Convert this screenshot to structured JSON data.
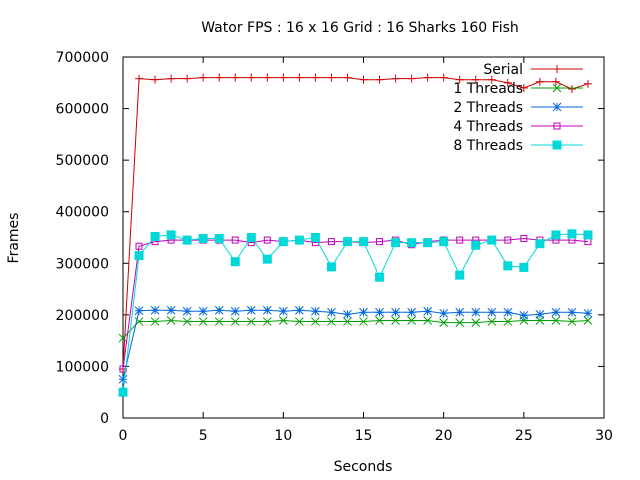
{
  "chart_data": {
    "type": "line",
    "title": "Wator FPS : 16  x 16  Grid : 16 Sharks 160 Fish",
    "xlabel": "Seconds",
    "ylabel": "Frames",
    "xlim": [
      0,
      30
    ],
    "ylim": [
      0,
      700000
    ],
    "x_ticks": [
      0,
      5,
      10,
      15,
      20,
      25,
      30
    ],
    "y_ticks": [
      0,
      100000,
      200000,
      300000,
      400000,
      500000,
      600000,
      700000
    ],
    "grid": false,
    "legend_position": "top-right",
    "x": [
      0,
      1,
      2,
      3,
      4,
      5,
      6,
      7,
      8,
      9,
      10,
      11,
      12,
      13,
      14,
      15,
      16,
      17,
      18,
      19,
      20,
      21,
      22,
      23,
      24,
      25,
      26,
      27,
      28,
      29
    ],
    "series": [
      {
        "name": "Serial",
        "color": "#cc0000",
        "marker": "plus",
        "start": [
          0,
          95000
        ],
        "values": [
          95000,
          658000,
          656000,
          658000,
          658000,
          660000,
          660000,
          660000,
          660000,
          660000,
          660000,
          660000,
          660000,
          660000,
          660000,
          656000,
          656000,
          658000,
          658000,
          660000,
          660000,
          656000,
          656000,
          656000,
          650000,
          640000,
          652000,
          652000,
          638000,
          648000
        ]
      },
      {
        "name": "1 Threads",
        "color": "#00a000",
        "marker": "x",
        "values": [
          155000,
          187000,
          187000,
          189000,
          187000,
          187000,
          187000,
          187000,
          187000,
          187000,
          189000,
          187000,
          187000,
          187000,
          187000,
          187000,
          189000,
          189000,
          189000,
          189000,
          185000,
          185000,
          185000,
          187000,
          187000,
          189000,
          189000,
          189000,
          187000,
          189000
        ]
      },
      {
        "name": "2 Threads",
        "color": "#0066dd",
        "marker": "star",
        "values": [
          75000,
          208000,
          209000,
          209000,
          207000,
          207000,
          209000,
          207000,
          209000,
          209000,
          207000,
          209000,
          207000,
          205000,
          201000,
          205000,
          205000,
          205000,
          205000,
          207000,
          203000,
          205000,
          205000,
          205000,
          205000,
          199000,
          201000,
          205000,
          205000,
          203000
        ]
      },
      {
        "name": "4 Threads",
        "color": "#c000c0",
        "marker": "open-square",
        "values": [
          95000,
          333000,
          342000,
          345000,
          345000,
          345000,
          345000,
          345000,
          340000,
          345000,
          342000,
          345000,
          340000,
          342000,
          342000,
          340000,
          342000,
          345000,
          336000,
          342000,
          345000,
          345000,
          345000,
          345000,
          345000,
          348000,
          345000,
          345000,
          345000,
          342000
        ]
      },
      {
        "name": "8 Threads",
        "color": "#00d8d8",
        "marker": "filled-square",
        "values": [
          50000,
          315000,
          352000,
          355000,
          345000,
          348000,
          348000,
          303000,
          350000,
          308000,
          342000,
          345000,
          350000,
          293000,
          342000,
          342000,
          273000,
          340000,
          340000,
          340000,
          342000,
          277000,
          335000,
          345000,
          295000,
          292000,
          338000,
          355000,
          357000,
          355000
        ]
      }
    ]
  }
}
